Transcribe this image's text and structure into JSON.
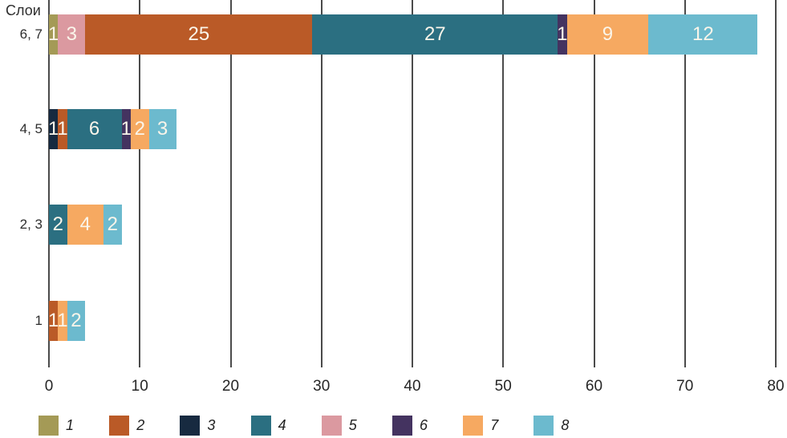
{
  "chart_data": {
    "type": "bar",
    "orientation": "horizontal-stacked",
    "title": "",
    "ylabel": "Слои",
    "xlabel": "",
    "xlim": [
      0,
      80
    ],
    "xticks": [
      0,
      10,
      20,
      30,
      40,
      50,
      60,
      70,
      80
    ],
    "grid": "vertical",
    "legend_position": "bottom",
    "categories": [
      "6, 7",
      "4, 5",
      "2, 3",
      "1"
    ],
    "series": [
      {
        "label": "1",
        "color": "#a49a56"
      },
      {
        "label": "2",
        "color": "#ba5a27"
      },
      {
        "label": "3",
        "color": "#172a40"
      },
      {
        "label": "4",
        "color": "#2b6f81"
      },
      {
        "label": "5",
        "color": "#db99a0"
      },
      {
        "label": "6",
        "color": "#443360"
      },
      {
        "label": "7",
        "color": "#f6a961"
      },
      {
        "label": "8",
        "color": "#6cbace"
      }
    ],
    "bars": [
      {
        "category": "6, 7",
        "total": 78,
        "segments": [
          {
            "series": "1",
            "value": 1
          },
          {
            "series": "5",
            "value": 3
          },
          {
            "series": "2",
            "value": 25
          },
          {
            "series": "4",
            "value": 27
          },
          {
            "series": "6",
            "value": 1
          },
          {
            "series": "7",
            "value": 9
          },
          {
            "series": "8",
            "value": 12
          }
        ]
      },
      {
        "category": "4, 5",
        "total": 14,
        "segments": [
          {
            "series": "3",
            "value": 1
          },
          {
            "series": "2",
            "value": 1
          },
          {
            "series": "4",
            "value": 6
          },
          {
            "series": "6",
            "value": 1
          },
          {
            "series": "7",
            "value": 2
          },
          {
            "series": "8",
            "value": 3
          }
        ]
      },
      {
        "category": "2, 3",
        "total": 8,
        "segments": [
          {
            "series": "4",
            "value": 2
          },
          {
            "series": "7",
            "value": 4
          },
          {
            "series": "8",
            "value": 2
          }
        ]
      },
      {
        "category": "1",
        "total": 4,
        "segments": [
          {
            "series": "2",
            "value": 1
          },
          {
            "series": "7",
            "value": 1
          },
          {
            "series": "8",
            "value": 2
          }
        ]
      }
    ]
  }
}
